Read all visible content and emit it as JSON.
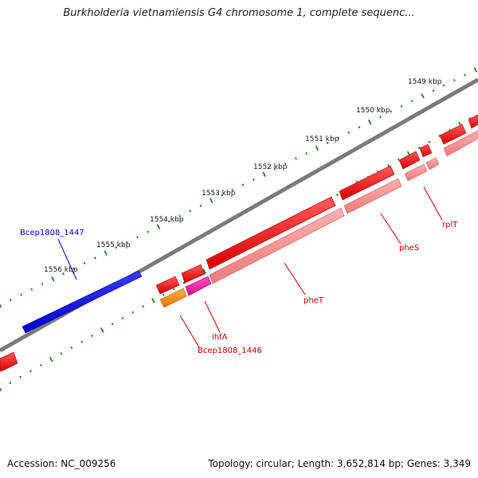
{
  "title": "Burkholderia vietnamiensis G4 chromosome 1, complete sequenc...",
  "footer": {
    "accession": "Accession: NC_009256",
    "stats": "Topology: circular; Length: 3,652,814 bp; Genes: 3,349"
  },
  "ruler_labels": [
    "1549 kbp",
    "1550 kbp",
    "1551 kbp",
    "1552 kbp",
    "1553 kbp",
    "1554 kbp",
    "1555 kbp",
    "1556 kbp"
  ],
  "genes": [
    {
      "label": "Bcep1808_1447",
      "color": "#0000ee",
      "strand": "plus"
    },
    {
      "label": "Bcep1808_1446",
      "color": "#ff8c00",
      "strand": "minus"
    },
    {
      "label": "ihfA",
      "color": "#ee1188",
      "strand": "minus"
    },
    {
      "label": "pheT",
      "color": "#ee0000",
      "strand": "minus"
    },
    {
      "label": "pheS",
      "color": "#ee0000",
      "strand": "minus"
    },
    {
      "label": "rplT",
      "color": "#ee0000",
      "strand": "minus"
    }
  ],
  "colors": {
    "backbone": "#7a7a7a",
    "tick": "#1a8a1a",
    "cds": "#ee0000",
    "gene": "#f08080",
    "plus_label": "#0000cc",
    "minus_label": "#cc0000"
  }
}
